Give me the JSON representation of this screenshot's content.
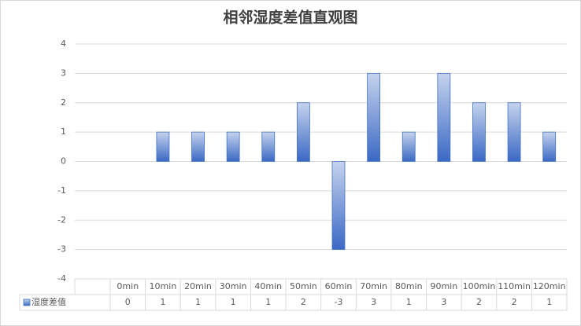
{
  "chart_data": {
    "type": "bar",
    "title": "相邻湿度差值直观图",
    "categories": [
      "0min",
      "10min",
      "20min",
      "30min",
      "40min",
      "50min",
      "60min",
      "70min",
      "80min",
      "90min",
      "100min",
      "110min",
      "120min"
    ],
    "series": [
      {
        "name": "湿度差值",
        "color": "#4472c4",
        "values": [
          0,
          1,
          1,
          1,
          1,
          2,
          -3,
          3,
          1,
          3,
          2,
          2,
          1
        ]
      }
    ],
    "ylim": [
      -4,
      4
    ],
    "yticks": [
      -4,
      -3,
      -2,
      -1,
      0,
      1,
      2,
      3,
      4
    ],
    "grid": true
  }
}
